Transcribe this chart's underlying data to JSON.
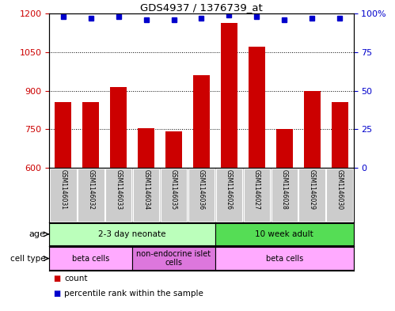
{
  "title": "GDS4937 / 1376739_at",
  "samples": [
    "GSM1146031",
    "GSM1146032",
    "GSM1146033",
    "GSM1146034",
    "GSM1146035",
    "GSM1146036",
    "GSM1146026",
    "GSM1146027",
    "GSM1146028",
    "GSM1146029",
    "GSM1146030"
  ],
  "counts": [
    855,
    855,
    915,
    755,
    740,
    960,
    1165,
    1070,
    750,
    900,
    855
  ],
  "percentile_ranks": [
    98,
    97,
    98,
    96,
    96,
    97,
    99,
    98,
    96,
    97,
    97
  ],
  "ylim_left": [
    600,
    1200
  ],
  "ylim_right": [
    0,
    100
  ],
  "yticks_left": [
    600,
    750,
    900,
    1050,
    1200
  ],
  "yticks_right": [
    0,
    25,
    50,
    75,
    100
  ],
  "bar_color": "#cc0000",
  "dot_color": "#0000cc",
  "age_groups": [
    {
      "label": "2-3 day neonate",
      "start": 0,
      "end": 6,
      "color": "#bbffbb"
    },
    {
      "label": "10 week adult",
      "start": 6,
      "end": 11,
      "color": "#55dd55"
    }
  ],
  "cell_type_groups": [
    {
      "label": "beta cells",
      "start": 0,
      "end": 3,
      "color": "#ffaaff"
    },
    {
      "label": "non-endocrine islet\ncells",
      "start": 3,
      "end": 6,
      "color": "#dd77dd"
    },
    {
      "label": "beta cells",
      "start": 6,
      "end": 11,
      "color": "#ffaaff"
    }
  ],
  "background_color": "#ffffff",
  "plot_bg_color": "#ffffff",
  "tick_label_color_left": "#cc0000",
  "tick_label_color_right": "#0000cc",
  "names_bg_color": "#cccccc"
}
